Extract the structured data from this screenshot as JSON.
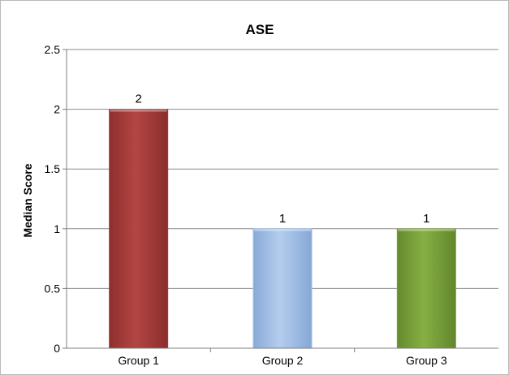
{
  "chart_data": {
    "type": "bar",
    "title": "ASE",
    "xlabel": "",
    "ylabel": "Median Score",
    "categories": [
      "Group 1",
      "Group 2",
      "Group 3"
    ],
    "values": [
      2,
      1,
      1
    ],
    "data_labels": [
      "2",
      "1",
      "1"
    ],
    "ylim": [
      0,
      2.5
    ],
    "yticks": [
      0,
      0.5,
      1,
      1.5,
      2,
      2.5
    ],
    "ytick_labels": [
      "0",
      "0.5",
      "1",
      "1.5",
      "2",
      "2.5"
    ],
    "grid": true,
    "legend": "none",
    "colors": [
      "#a63a38",
      "#9dbde6",
      "#77a03b"
    ]
  }
}
